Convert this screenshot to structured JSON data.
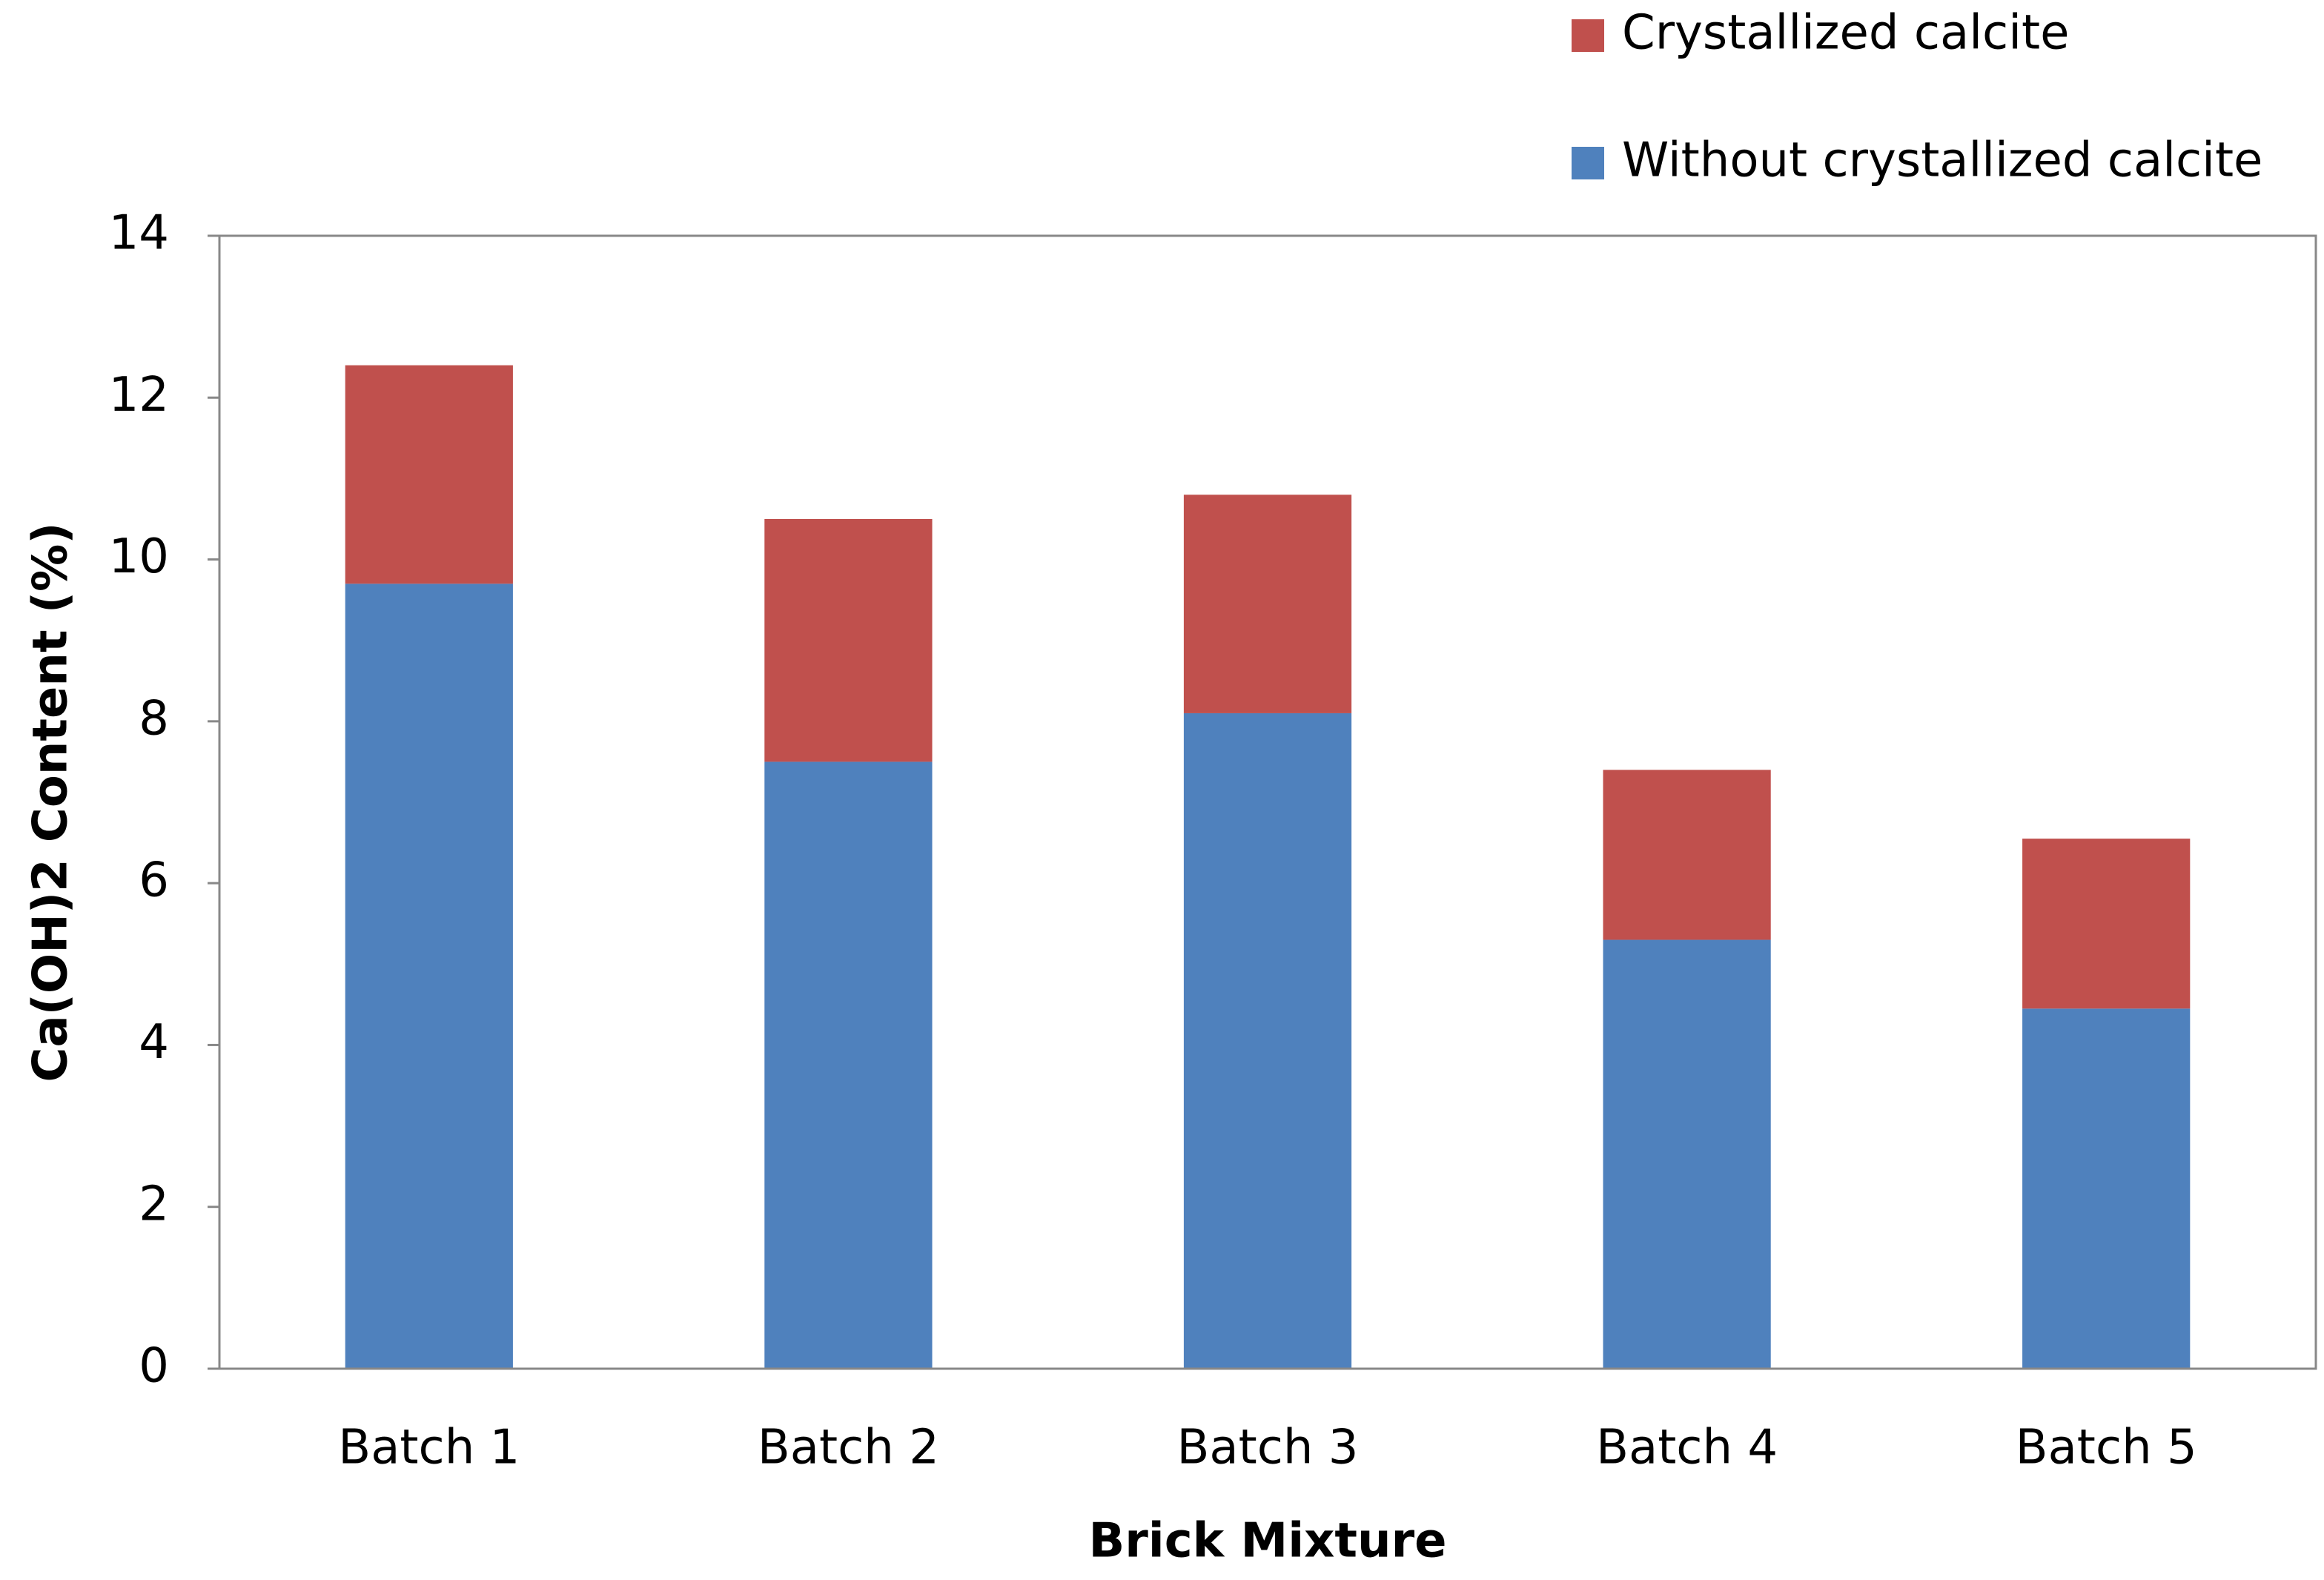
{
  "chart_data": {
    "type": "bar",
    "stacked": true,
    "x_label": "Brick Mixture",
    "y_label": "Ca(OH)2  Content (%)",
    "categories": [
      "Batch 1",
      "Batch 2",
      "Batch 3",
      "Batch 4",
      "Batch 5"
    ],
    "series": [
      {
        "name": "Without crystallized calcite",
        "color": "#4f81bd",
        "values": [
          9.7,
          7.5,
          8.1,
          5.3,
          4.45
        ]
      },
      {
        "name": "Crystallized calcite",
        "color": "#c0504d",
        "values": [
          2.7,
          3.0,
          2.7,
          2.1,
          2.1
        ]
      }
    ],
    "ylim": [
      0,
      14
    ],
    "yticks": [
      0,
      2,
      4,
      6,
      8,
      10,
      12,
      14
    ],
    "grid": false,
    "legend": "top-right"
  }
}
